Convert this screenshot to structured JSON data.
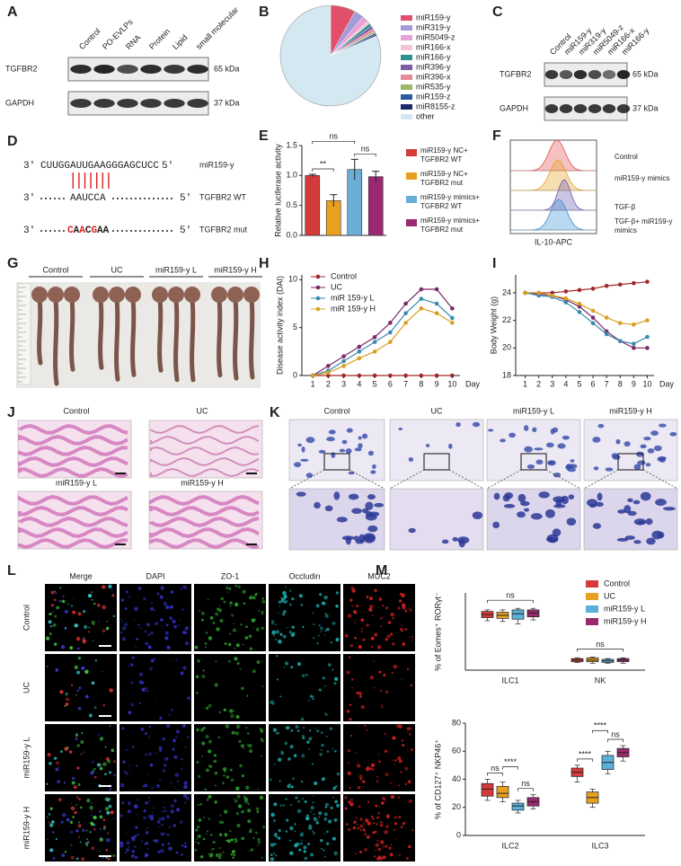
{
  "panel_labels": [
    "A",
    "B",
    "C",
    "D",
    "E",
    "F",
    "G",
    "H",
    "I",
    "J",
    "K",
    "L",
    "M"
  ],
  "blot_a": {
    "lanes": [
      "Control",
      "PO-EVLPs",
      "RNA",
      "Protein",
      "Lipid",
      "small molecular"
    ],
    "bands": [
      "TGFBR2",
      "GAPDH"
    ],
    "sizes": [
      "65 kDa",
      "37 kDa"
    ]
  },
  "blot_c": {
    "lanes": [
      "Control",
      "miR159-y",
      "miR319-y",
      "miR5049-z",
      "miR166-x",
      "miR166-y"
    ],
    "bands": [
      "TGFBR2",
      "GAPDH"
    ],
    "sizes": [
      "65 kDa",
      "37 kDa"
    ]
  },
  "sequence_d": {
    "mirna": {
      "prefix": "3'",
      "sequence": "CUUGGAUUGAAGGGAGCUCC",
      "suffix": "5'",
      "name": "miR159-y"
    },
    "wt": {
      "prefix": "3'",
      "sequence": "AAUCCA",
      "suffix": "5'",
      "name": "TGFBR2 WT"
    },
    "mut": {
      "prefix": "3'",
      "parts": [
        {
          "text": "C",
          "color": "#e02020"
        },
        {
          "text": "A",
          "color": "#222222"
        },
        {
          "text": "A",
          "color": "#e02020"
        },
        {
          "text": "C",
          "color": "#222222"
        },
        {
          "text": "G",
          "color": "#e02020"
        },
        {
          "text": "AA",
          "color": "#222222"
        }
      ],
      "suffix": "5'",
      "name": "TGFBR2 mut"
    }
  },
  "flow_f": {
    "samples": [
      "Control",
      "miR159-y mimics",
      "TGF-β",
      "TGF-β+ miR159-y mimics"
    ],
    "colors": [
      "#e05050",
      "#e8a020",
      "#6a5ab0",
      "#3a90d0"
    ],
    "xlabel": "IL-10-APC"
  },
  "photo_g": {
    "groups": [
      "Control",
      "UC",
      "miR159-y L",
      "miR159-y H"
    ]
  },
  "histology_j": {
    "groups": [
      "Control",
      "UC",
      "miR159-y L",
      "miR159-y H"
    ]
  },
  "histology_k": {
    "groups": [
      "Control",
      "UC",
      "miR159-y L",
      "miR159-y H"
    ]
  },
  "if_l": {
    "channels": [
      {
        "name": "Merge",
        "color": "#111111"
      },
      {
        "name": "DAPI",
        "color": "#2a2ab8"
      },
      {
        "name": "ZO-1",
        "color": "#2a9a2a"
      },
      {
        "name": "Occludin",
        "color": "#1aa0a0"
      },
      {
        "name": "MUC2",
        "color": "#d02020"
      }
    ],
    "groups": [
      "Control",
      "UC",
      "miR159-y L",
      "miR159-y H"
    ]
  },
  "chart_data": [
    {
      "type": "pie",
      "categories": [
        "miR159-y",
        "miR319-y",
        "miR5049-z",
        "miR166-x",
        "miR166-y",
        "miR396-y",
        "miR396-x",
        "miR535-y",
        "miR159-z",
        "miR8155-z",
        "other"
      ],
      "values": [
        8,
        3,
        2,
        1,
        1,
        1,
        1,
        0.5,
        0.5,
        0.5,
        81.5
      ],
      "colors": [
        "#e0506a",
        "#a29bd8",
        "#e8a0d8",
        "#f2c6d6",
        "#2f8f8f",
        "#7b5ea7",
        "#e88a9a",
        "#9bb86a",
        "#2a5aa0",
        "#1b2a6b",
        "#d4e8f2"
      ]
    },
    {
      "type": "bar",
      "ylabel": "Relative luciferase activity",
      "ylim": [
        0,
        1.5
      ],
      "yticks": [
        {
          "value": 0,
          "label": "0.0"
        },
        {
          "value": 0.5,
          "label": "0.5"
        },
        {
          "value": 1,
          "label": "1.0"
        },
        {
          "value": 1.5,
          "label": "1.5"
        }
      ],
      "series": [
        {
          "name": "miR159-y NC+ TGFBR2 WT",
          "color": "#d43a3a",
          "values": [
            1.0
          ],
          "errors": [
            0.02
          ]
        },
        {
          "name": "miR159-y NC+ TGFBR2 mut",
          "color": "#e8a020",
          "values": [
            0.58
          ],
          "errors": [
            0.1
          ]
        },
        {
          "name": "miR159-y mimics+ TGFBR2 WT",
          "color": "#6aaed6",
          "values": [
            1.1
          ],
          "errors": [
            0.17
          ]
        },
        {
          "name": "miR159-y mimics+ TGFBR2 mut",
          "color": "#9a2a70",
          "values": [
            0.98
          ],
          "errors": [
            0.09
          ]
        }
      ],
      "annotations": [
        "**",
        "ns",
        "ns"
      ]
    },
    {
      "type": "line",
      "ylabel": "Disease activity index (DAI)",
      "xlabel": "Day",
      "x": [
        1,
        2,
        3,
        4,
        5,
        6,
        7,
        8,
        9,
        10
      ],
      "xlim": [
        0.3,
        10.5
      ],
      "xticks": [
        1,
        2,
        3,
        4,
        5,
        6,
        7,
        8,
        9,
        10
      ],
      "ylim": [
        0,
        10.5
      ],
      "yticks": [
        0,
        5,
        10
      ],
      "legend": "upper left",
      "series": [
        {
          "name": "Control",
          "color": "#a02828",
          "values": [
            0,
            0,
            0,
            0,
            0,
            0,
            0,
            0,
            0,
            0
          ]
        },
        {
          "name": "UC",
          "color": "#7a2a6a",
          "values": [
            0,
            1,
            2,
            3,
            4,
            5.5,
            7.5,
            9,
            9,
            7
          ]
        },
        {
          "name": "miR 159-y L",
          "color": "#3a8ab0",
          "values": [
            0,
            0.5,
            1.5,
            2.5,
            3.5,
            4.5,
            6.5,
            8,
            7.5,
            6
          ]
        },
        {
          "name": "miR 159-y H",
          "color": "#d8a020",
          "values": [
            0,
            0.3,
            1,
            1.8,
            2.5,
            3.5,
            5.5,
            7,
            6.5,
            5.5
          ]
        }
      ]
    },
    {
      "type": "line",
      "ylabel": "Body Weight (g)",
      "xlabel": "Day",
      "x": [
        1,
        2,
        3,
        4,
        5,
        6,
        7,
        8,
        9,
        10
      ],
      "xlim": [
        0.3,
        10.5
      ],
      "xticks": [
        1,
        2,
        3,
        4,
        5,
        6,
        7,
        8,
        9,
        10
      ],
      "ylim": [
        18,
        25.3
      ],
      "yticks": [
        18,
        20,
        22,
        24
      ],
      "series": [
        {
          "color": "#a02828",
          "values": [
            24,
            24,
            24,
            24.1,
            24.2,
            24.3,
            24.5,
            24.6,
            24.7,
            24.8
          ]
        },
        {
          "color": "#7a2a6a",
          "values": [
            24,
            23.9,
            23.8,
            23.5,
            23,
            22.2,
            21.2,
            20.5,
            20,
            20
          ]
        },
        {
          "color": "#3a8ab0",
          "values": [
            24,
            23.8,
            23.7,
            23.3,
            22.6,
            21.8,
            21,
            20.5,
            20.3,
            20.8
          ]
        },
        {
          "color": "#d8a020",
          "values": [
            24,
            24,
            23.8,
            23.6,
            23.2,
            22.7,
            22.2,
            21.8,
            21.7,
            22
          ]
        }
      ]
    },
    {
      "type": "box",
      "ylabel": "% of Eomes⁺ RORγt⁻",
      "categories": [
        "ILC1",
        "NK"
      ],
      "ylim": [
        0,
        100
      ],
      "legend": "upper right",
      "series": [
        {
          "name": "Control",
          "color": "#d43a3a",
          "median": [
            72,
            13
          ],
          "q1": [
            68,
            11
          ],
          "q3": [
            76,
            15
          ],
          "min": [
            64,
            10
          ],
          "max": [
            78,
            16
          ]
        },
        {
          "name": "UC",
          "color": "#e8a020",
          "median": [
            71,
            13
          ],
          "q1": [
            67,
            11
          ],
          "q3": [
            75,
            16
          ],
          "min": [
            63,
            9
          ],
          "max": [
            78,
            17
          ]
        },
        {
          "name": "miR159-y L",
          "color": "#5ab0d8",
          "median": [
            73,
            12
          ],
          "q1": [
            66,
            10
          ],
          "q3": [
            78,
            14
          ],
          "min": [
            60,
            9
          ],
          "max": [
            80,
            15
          ]
        },
        {
          "name": "miR159-y H",
          "color": "#9a2a70",
          "median": [
            74,
            13
          ],
          "q1": [
            69,
            11
          ],
          "q3": [
            78,
            15
          ],
          "min": [
            65,
            9
          ],
          "max": [
            80,
            16
          ]
        }
      ],
      "annotations": [
        "ns",
        "ns"
      ]
    },
    {
      "type": "box",
      "ylabel": "% of CD127⁺ NKP46⁺",
      "categories": [
        "ILC2",
        "ILC3"
      ],
      "ylim": [
        0,
        80
      ],
      "yticks": [
        0,
        20,
        40,
        60,
        80
      ],
      "series": [
        {
          "color": "#d43a3a",
          "median": [
            33,
            45
          ],
          "q1": [
            28,
            42
          ],
          "q3": [
            37,
            48
          ],
          "min": [
            25,
            38
          ],
          "max": [
            40,
            50
          ]
        },
        {
          "color": "#e8a020",
          "median": [
            30,
            27
          ],
          "q1": [
            27,
            23
          ],
          "q3": [
            35,
            31
          ],
          "min": [
            24,
            20
          ],
          "max": [
            38,
            33
          ]
        },
        {
          "color": "#5ab0d8",
          "median": [
            21,
            52
          ],
          "q1": [
            18,
            47
          ],
          "q3": [
            23,
            57
          ],
          "min": [
            16,
            44
          ],
          "max": [
            25,
            60
          ]
        },
        {
          "color": "#9a2a70",
          "median": [
            24,
            59
          ],
          "q1": [
            21,
            56
          ],
          "q3": [
            27,
            62
          ],
          "min": [
            19,
            53
          ],
          "max": [
            29,
            64
          ]
        }
      ],
      "annotations": [
        "ns",
        "****",
        "ns",
        "****",
        "****",
        "ns"
      ]
    }
  ]
}
